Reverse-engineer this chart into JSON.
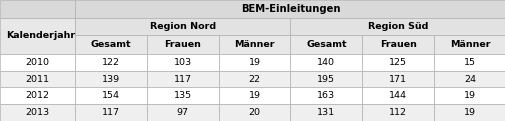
{
  "title": "BEM-Einleitungen",
  "region_nord": "Region Nord",
  "region_sued": "Region Süd",
  "kalenderjahr": "Kalenderjahr",
  "col_headers": [
    "Gesamt",
    "Frauen",
    "Männer",
    "Gesamt",
    "Frauen",
    "Männer"
  ],
  "rows": [
    [
      "2010",
      "122",
      "103",
      "19",
      "140",
      "125",
      "15"
    ],
    [
      "2011",
      "139",
      "117",
      "22",
      "195",
      "171",
      "24"
    ],
    [
      "2012",
      "154",
      "135",
      "19",
      "163",
      "144",
      "19"
    ],
    [
      "2013",
      "117",
      "97",
      "20",
      "131",
      "112",
      "19"
    ]
  ],
  "bg_header_title": "#d9d9d9",
  "bg_header_region": "#e2e2e2",
  "bg_col_header": "#e8e8e8",
  "bg_row_even": "#ffffff",
  "bg_row_odd": "#efefef",
  "bg_left_col": "#e8e8e8",
  "border_color": "#b0b0b0",
  "text_color": "#000000",
  "figsize": [
    5.06,
    1.21
  ],
  "dpi": 100
}
